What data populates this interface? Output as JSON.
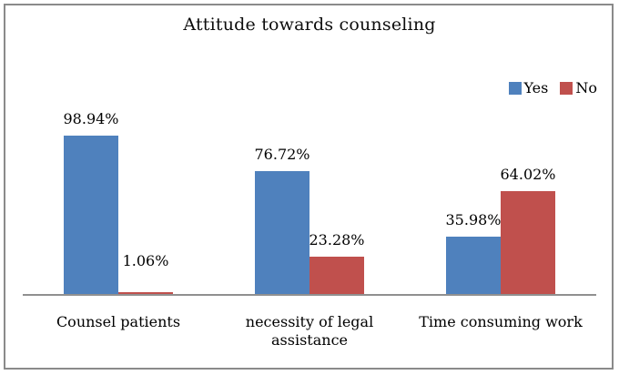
{
  "chart_data": {
    "type": "bar",
    "title": "Attitude towards counseling",
    "categories": [
      "Counsel patients",
      "necessity of legal assistance",
      "Time consuming work"
    ],
    "series": [
      {
        "name": "Yes",
        "color": "#4F81BD",
        "values": [
          98.94,
          76.72,
          35.98
        ],
        "labels": [
          "98.94%",
          "76.72%",
          "35.98%"
        ]
      },
      {
        "name": "No",
        "color": "#C0504D",
        "values": [
          1.06,
          23.28,
          64.02
        ],
        "labels": [
          "1.06%",
          "23.28%",
          "64.02%"
        ]
      }
    ],
    "ylim": [
      0,
      100
    ],
    "grid": false,
    "legend_position": "top-right",
    "data_labels": "outside-end",
    "axis_color": "#909090",
    "frame_color": "#8a8a8a"
  }
}
